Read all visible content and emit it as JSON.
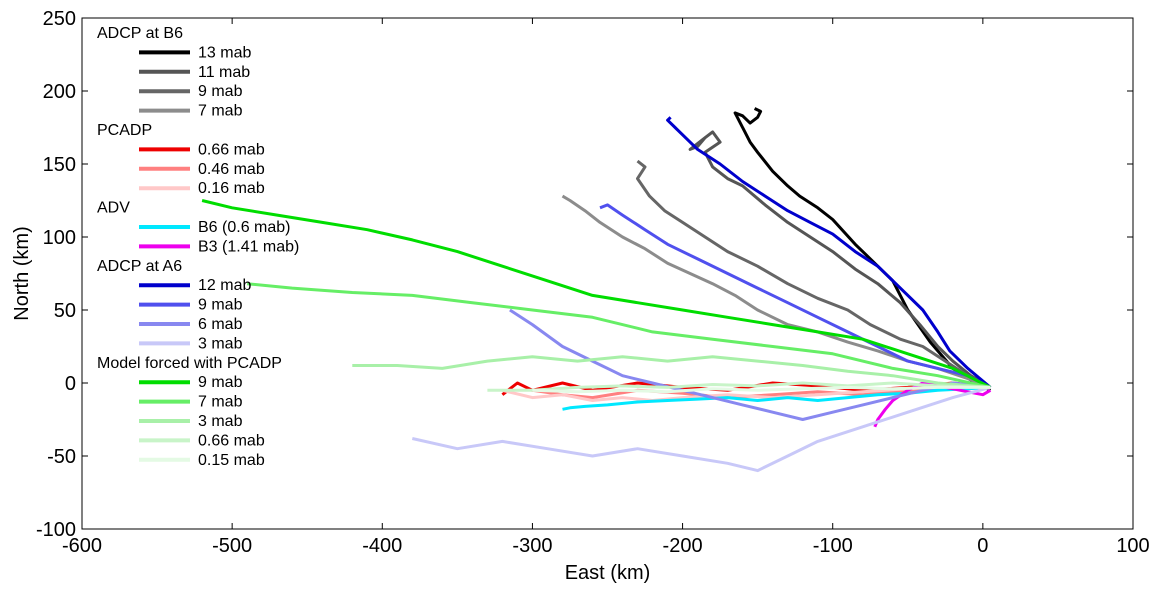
{
  "chart_data": {
    "type": "line",
    "title": "",
    "xlabel": "East (km)",
    "ylabel": "North (km)",
    "xlim": [
      -600,
      100
    ],
    "ylim": [
      -100,
      250
    ],
    "xticks": [
      -600,
      -500,
      -400,
      -300,
      -200,
      -100,
      0,
      100
    ],
    "yticks": [
      -100,
      -50,
      0,
      50,
      100,
      150,
      200,
      250
    ],
    "xtick_labels": [
      "-600",
      "-500",
      "-400",
      "-300",
      "-200",
      "-100",
      "0",
      "100"
    ],
    "ytick_labels": [
      "-100",
      "-50",
      "0",
      "50",
      "100",
      "150",
      "200",
      "250"
    ],
    "grid": false,
    "legend_placement": "top-left",
    "legend_groups": [
      {
        "title": "ADCP at B6",
        "entries": [
          0,
          1,
          2,
          3
        ]
      },
      {
        "title": "PCADP",
        "entries": [
          4,
          5,
          6
        ]
      },
      {
        "title": "ADV",
        "entries": [
          7,
          8
        ]
      },
      {
        "title": "ADCP at A6",
        "entries": [
          9,
          10,
          11,
          12
        ]
      },
      {
        "title": "Model forced with PCADP",
        "entries": [
          13,
          14,
          15,
          16,
          17
        ]
      }
    ],
    "series": [
      {
        "name": "13 mab",
        "color": "#000000",
        "x": [
          5,
          -5,
          -20,
          -35,
          -50,
          -60,
          -75,
          -85,
          -100,
          -110,
          -122,
          -130,
          -140,
          -150,
          -155,
          -160,
          -165,
          -160,
          -155,
          -150,
          -148,
          -152
        ],
        "y": [
          -5,
          0,
          10,
          28,
          50,
          70,
          85,
          95,
          112,
          120,
          128,
          135,
          145,
          158,
          165,
          175,
          185,
          183,
          178,
          182,
          186,
          188
        ]
      },
      {
        "name": "11 mab",
        "color": "#555555",
        "x": [
          5,
          -8,
          -20,
          -30,
          -42,
          -55,
          -70,
          -85,
          -100,
          -115,
          -130,
          -145,
          -160,
          -170,
          -180,
          -185,
          -175,
          -180,
          -185,
          -190,
          -195,
          -185
        ],
        "y": [
          -3,
          5,
          15,
          25,
          40,
          55,
          68,
          78,
          90,
          100,
          110,
          122,
          135,
          140,
          148,
          158,
          165,
          172,
          168,
          162,
          160,
          168
        ]
      },
      {
        "name": "9 mab",
        "color": "#666666",
        "x": [
          5,
          -10,
          -25,
          -40,
          -55,
          -75,
          -90,
          -110,
          -130,
          -150,
          -170,
          -185,
          -200,
          -212,
          -222,
          -230,
          -225,
          -230
        ],
        "y": [
          -3,
          5,
          15,
          25,
          30,
          40,
          50,
          58,
          68,
          80,
          90,
          100,
          110,
          118,
          128,
          140,
          148,
          152
        ]
      },
      {
        "name": "7 mab",
        "color": "#8c8c8c",
        "x": [
          5,
          -10,
          -30,
          -50,
          -70,
          -90,
          -110,
          -130,
          -150,
          -165,
          -180,
          -195,
          -210,
          -225,
          -240,
          -255,
          -265,
          -275,
          -280
        ],
        "y": [
          -3,
          3,
          10,
          15,
          22,
          28,
          35,
          40,
          50,
          60,
          68,
          75,
          82,
          92,
          100,
          110,
          118,
          125,
          128
        ]
      },
      {
        "name": "0.66 mab",
        "color": "#ee0000",
        "x": [
          5,
          -20,
          -50,
          -80,
          -110,
          -140,
          -170,
          -200,
          -230,
          -260,
          -280,
          -300,
          -310,
          -320
        ],
        "y": [
          -3,
          0,
          -3,
          -5,
          -2,
          0,
          -5,
          -3,
          0,
          -5,
          0,
          -5,
          0,
          -8
        ]
      },
      {
        "name": "0.46 mab",
        "color": "#ff8080",
        "x": [
          5,
          -20,
          -50,
          -80,
          -110,
          -140,
          -170,
          -200,
          -230,
          -260,
          -280,
          -300
        ],
        "y": [
          -3,
          -3,
          -5,
          -8,
          -6,
          -8,
          -10,
          -7,
          -5,
          -10,
          -8,
          -5
        ]
      },
      {
        "name": "0.16 mab",
        "color": "#ffc8c8",
        "x": [
          5,
          -20,
          -50,
          -80,
          -110,
          -140,
          -170,
          -200,
          -220,
          -240,
          -260,
          -280,
          -300,
          -320
        ],
        "y": [
          -3,
          -2,
          -4,
          -6,
          -8,
          -10,
          -8,
          -10,
          -12,
          -10,
          -12,
          -8,
          -10,
          -5
        ]
      },
      {
        "name": "B6 (0.6 mab)",
        "color": "#00e8ff",
        "x": [
          5,
          -10,
          -30,
          -50,
          -70,
          -90,
          -110,
          -130,
          -150,
          -170,
          -190,
          -210,
          -230,
          -250,
          -265,
          -275,
          -280
        ],
        "y": [
          -3,
          -4,
          -5,
          -7,
          -8,
          -10,
          -12,
          -10,
          -12,
          -10,
          -11,
          -12,
          -13,
          -15,
          -16,
          -17,
          -18
        ]
      },
      {
        "name": "B3 (1.41 mab)",
        "color": "#ee00ee",
        "x": [
          5,
          0,
          -10,
          -20,
          -30,
          -40,
          -50,
          -60,
          -65,
          -70,
          -72
        ],
        "y": [
          -5,
          -8,
          -6,
          -4,
          -2,
          0,
          -5,
          -12,
          -18,
          -25,
          -30
        ]
      },
      {
        "name": "12 mab",
        "color": "#0000cc",
        "x": [
          5,
          -10,
          -22,
          -30,
          -40,
          -55,
          -70,
          -85,
          -100,
          -115,
          -130,
          -145,
          -160,
          -175,
          -190,
          -200,
          -205,
          -210,
          -208
        ],
        "y": [
          -3,
          10,
          22,
          35,
          50,
          65,
          80,
          90,
          102,
          110,
          118,
          128,
          138,
          150,
          160,
          170,
          175,
          180,
          182
        ]
      },
      {
        "name": "9 mab",
        "color": "#5050ee",
        "x": [
          5,
          -10,
          -30,
          -50,
          -70,
          -90,
          -110,
          -130,
          -150,
          -170,
          -190,
          -210,
          -225,
          -240,
          -250,
          -255
        ],
        "y": [
          -3,
          5,
          10,
          15,
          25,
          35,
          45,
          55,
          65,
          75,
          85,
          95,
          105,
          115,
          122,
          120
        ]
      },
      {
        "name": "6 mab",
        "color": "#8888f0",
        "x": [
          5,
          -20,
          -40,
          -60,
          -80,
          -100,
          -120,
          -140,
          -160,
          -180,
          -200,
          -220,
          -240,
          -260,
          -280,
          -300,
          -315
        ],
        "y": [
          -3,
          0,
          -5,
          -10,
          -15,
          -20,
          -25,
          -20,
          -15,
          -10,
          -5,
          0,
          5,
          15,
          25,
          40,
          50
        ]
      },
      {
        "name": "3 mab",
        "color": "#c8c8f8",
        "x": [
          5,
          -20,
          -50,
          -80,
          -110,
          -130,
          -150,
          -170,
          -200,
          -230,
          -260,
          -290,
          -320,
          -350,
          -380
        ],
        "y": [
          -3,
          -10,
          -20,
          -30,
          -40,
          -50,
          -60,
          -55,
          -50,
          -45,
          -50,
          -45,
          -40,
          -45,
          -38
        ]
      },
      {
        "name": "9 mab",
        "color": "#00dd00",
        "x": [
          5,
          -20,
          -50,
          -80,
          -110,
          -140,
          -170,
          -200,
          -230,
          -260,
          -290,
          -320,
          -350,
          -380,
          -410,
          -440,
          -470,
          -500,
          -520
        ],
        "y": [
          -3,
          10,
          20,
          30,
          35,
          40,
          45,
          50,
          55,
          60,
          70,
          80,
          90,
          98,
          105,
          110,
          115,
          120,
          125
        ]
      },
      {
        "name": "7 mab",
        "color": "#66ee66",
        "x": [
          5,
          -30,
          -60,
          -100,
          -140,
          -180,
          -220,
          -260,
          -300,
          -340,
          -380,
          -420,
          -460,
          -490
        ],
        "y": [
          -3,
          5,
          10,
          20,
          25,
          30,
          35,
          45,
          50,
          55,
          60,
          62,
          65,
          68
        ]
      },
      {
        "name": "3 mab",
        "color": "#a8f0a8",
        "x": [
          5,
          -30,
          -60,
          -90,
          -120,
          -150,
          -180,
          -210,
          -240,
          -270,
          -300,
          -330,
          -360,
          -390,
          -420
        ],
        "y": [
          -3,
          0,
          5,
          8,
          12,
          15,
          18,
          15,
          18,
          15,
          18,
          15,
          10,
          12,
          12
        ]
      },
      {
        "name": "0.66 mab",
        "color": "#c8f4c8",
        "x": [
          5,
          -30,
          -60,
          -90,
          -120,
          -150,
          -180,
          -210,
          -240,
          -270,
          -300,
          -330
        ],
        "y": [
          -3,
          -2,
          0,
          -2,
          0,
          -2,
          -1,
          -3,
          -2,
          -3,
          -5,
          -5
        ]
      },
      {
        "name": "0.15 mab",
        "color": "#e4fae4",
        "x": [
          5,
          -30,
          -60,
          -90,
          -120,
          -150,
          -180,
          -210,
          -240,
          -270,
          -300
        ],
        "y": [
          -3,
          -3,
          -4,
          -3,
          -4,
          -5,
          -4,
          -6,
          -5,
          -6,
          -5
        ]
      }
    ]
  }
}
